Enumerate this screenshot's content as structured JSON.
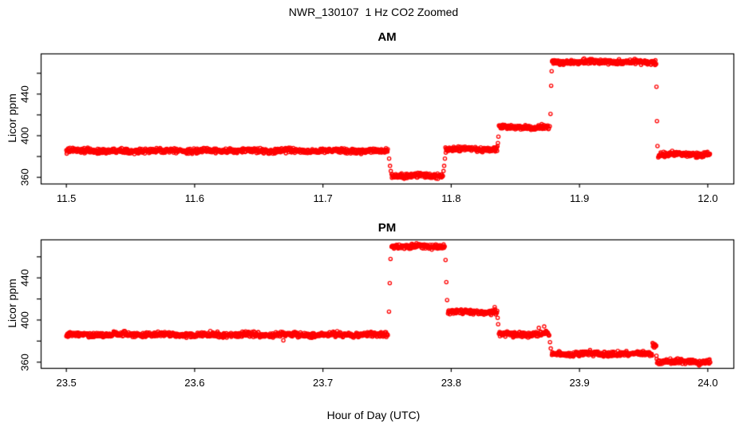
{
  "title": "NWR_130107  1 Hz CO2 Zoomed",
  "xlabel": "Hour of Day (UTC)",
  "ylabel": "Licor ppm",
  "colors": {
    "points": "#FF0000",
    "axis": "#000000",
    "background": "#FFFFFF"
  },
  "chart_data": {
    "type": "scatter",
    "marker": "open-circle",
    "sample_rate_hz": 1,
    "grid": "off",
    "panels": [
      {
        "label": "AM",
        "xlim": [
          11.48,
          12.02
        ],
        "ylim": [
          354,
          479
        ],
        "x_ticks": [
          {
            "v": 11.5,
            "label": "11.5"
          },
          {
            "v": 11.6,
            "label": "11.6"
          },
          {
            "v": 11.7,
            "label": "11.7"
          },
          {
            "v": 11.8,
            "label": "11.8"
          },
          {
            "v": 11.9,
            "label": "11.9"
          },
          {
            "v": 12.0,
            "label": "12.0"
          }
        ],
        "y_ticks_minor": [
          360,
          380,
          400,
          420,
          440,
          460
        ],
        "y_ticks_labeled": [
          {
            "v": 360,
            "label": "360"
          },
          {
            "v": 400,
            "label": "400"
          },
          {
            "v": 440,
            "label": "440"
          }
        ],
        "segments": [
          {
            "t0": 11.5,
            "t1": 11.7505,
            "v": 385.5
          },
          {
            "t0": 11.7535,
            "t1": 11.7935,
            "v": 361.5
          },
          {
            "t0": 11.7955,
            "t1": 11.836,
            "v": 387.0
          },
          {
            "t0": 11.8372,
            "t1": 11.876,
            "v": 408.0
          },
          {
            "t0": 11.8786,
            "t1": 11.9596,
            "v": 470.8
          },
          {
            "t0": 11.9614,
            "t1": 12.0018,
            "v": 382.0
          }
        ],
        "transition_points": [
          [
            11.7516,
            378
          ],
          [
            11.7523,
            371
          ],
          [
            11.7529,
            366
          ],
          [
            11.794,
            366
          ],
          [
            11.7945,
            371
          ],
          [
            11.7951,
            378
          ],
          [
            11.8364,
            393
          ],
          [
            11.8368,
            399
          ],
          [
            11.8768,
            409
          ],
          [
            11.8774,
            421
          ],
          [
            11.8779,
            448
          ],
          [
            11.8783,
            462
          ],
          [
            11.96,
            447
          ],
          [
            11.9604,
            414
          ],
          [
            11.9608,
            390
          ]
        ]
      },
      {
        "label": "PM",
        "xlim": [
          23.48,
          24.02
        ],
        "ylim": [
          354.5,
          476.5
        ],
        "x_ticks": [
          {
            "v": 23.5,
            "label": "23.5"
          },
          {
            "v": 23.6,
            "label": "23.6"
          },
          {
            "v": 23.7,
            "label": "23.7"
          },
          {
            "v": 23.8,
            "label": "23.8"
          },
          {
            "v": 23.9,
            "label": "23.9"
          },
          {
            "v": 24.0,
            "label": "24.0"
          }
        ],
        "y_ticks_minor": [
          360,
          380,
          400,
          420,
          440,
          460
        ],
        "y_ticks_labeled": [
          {
            "v": 360,
            "label": "360"
          },
          {
            "v": 400,
            "label": "400"
          },
          {
            "v": 440,
            "label": "440"
          }
        ],
        "segments": [
          {
            "t0": 23.5,
            "t1": 23.7505,
            "v": 386.0
          },
          {
            "t0": 23.7535,
            "t1": 23.795,
            "v": 470.0
          },
          {
            "t0": 23.7975,
            "t1": 23.8358,
            "v": 407.5
          },
          {
            "t0": 23.8372,
            "t1": 23.8765,
            "v": 386.5
          },
          {
            "t0": 23.8785,
            "t1": 23.9565,
            "v": 368.0
          },
          {
            "t0": 23.957,
            "t1": 23.9597,
            "v": 376.5
          },
          {
            "t0": 23.9605,
            "t1": 24.0018,
            "v": 360.5
          }
        ],
        "transition_points": [
          [
            23.7515,
            408
          ],
          [
            23.7521,
            435
          ],
          [
            23.7527,
            458
          ],
          [
            23.7956,
            457
          ],
          [
            23.7962,
            436
          ],
          [
            23.7968,
            419
          ],
          [
            23.8362,
            402
          ],
          [
            23.8366,
            396
          ],
          [
            23.877,
            379
          ],
          [
            23.8776,
            373
          ],
          [
            23.96,
            366
          ],
          [
            23.9602,
            363
          ]
        ]
      }
    ]
  }
}
